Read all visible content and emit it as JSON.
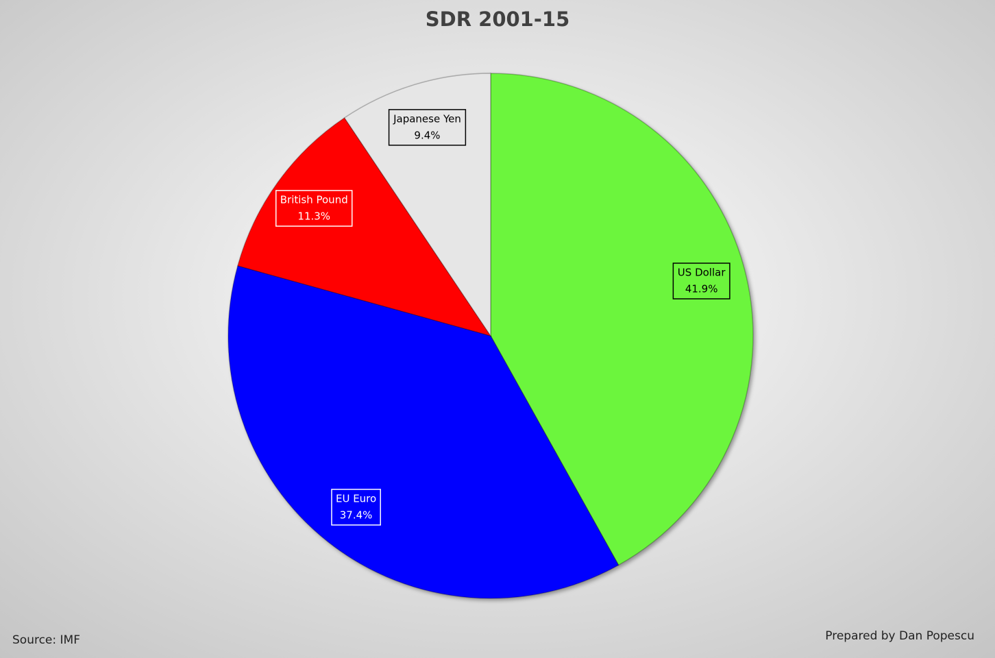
{
  "chart_data": {
    "type": "pie",
    "title": "SDR 2001-15",
    "categories": [
      "US Dollar",
      "EU Euro",
      "British Pound",
      "Japanese Yen"
    ],
    "values": [
      41.9,
      37.4,
      11.3,
      9.4
    ],
    "value_labels": [
      "41.9%",
      "37.4%",
      "11.3%",
      "9.4%"
    ],
    "colors": [
      "#6cf53c",
      "#0000ff",
      "#ff0000",
      "#e6e6e6"
    ],
    "source": "Source: IMF",
    "credit": "Prepared by Dan Popescu"
  }
}
